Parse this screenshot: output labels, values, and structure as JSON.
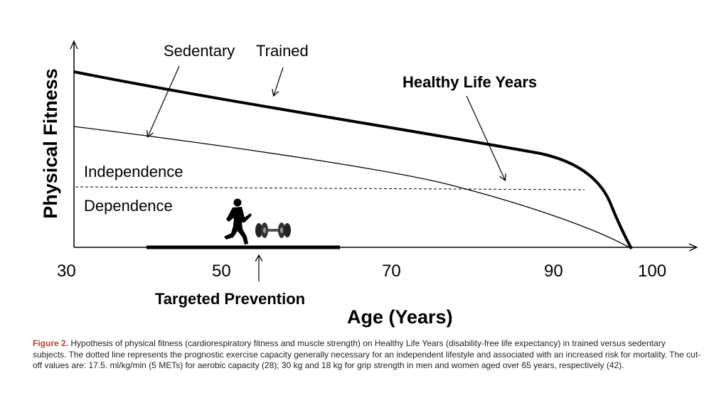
{
  "figure": {
    "y_axis_label": "Physical Fitness",
    "x_axis_label": "Age (Years)",
    "x_ticks": [
      "30",
      "50",
      "70",
      "90",
      "100"
    ],
    "annotations": {
      "sedentary": "Sedentary",
      "trained": "Trained",
      "healthy_life_years": "Healthy Life Years",
      "independence": "Independence",
      "dependence": "Dependence",
      "targeted_prevention": "Targeted Prevention"
    }
  },
  "caption": {
    "label": "Figure 2.",
    "text": " Hypothesis of physical fitness (cardiorespiratory fitness and muscle strength) on Healthy Life Years (disability-free life expectancy) in trained versus sedentary subjects. The dotted line represents the prognostic exercise capacity generally necessary for an independent lifestyle and associated with an increased risk for mortality. The cut-off values are: 17.5. ml/kg/min (5 METs) for aerobic capacity (28); 30 kg and 18 kg for grip strength in men and women aged over 65 years, respectively (42)."
  }
}
